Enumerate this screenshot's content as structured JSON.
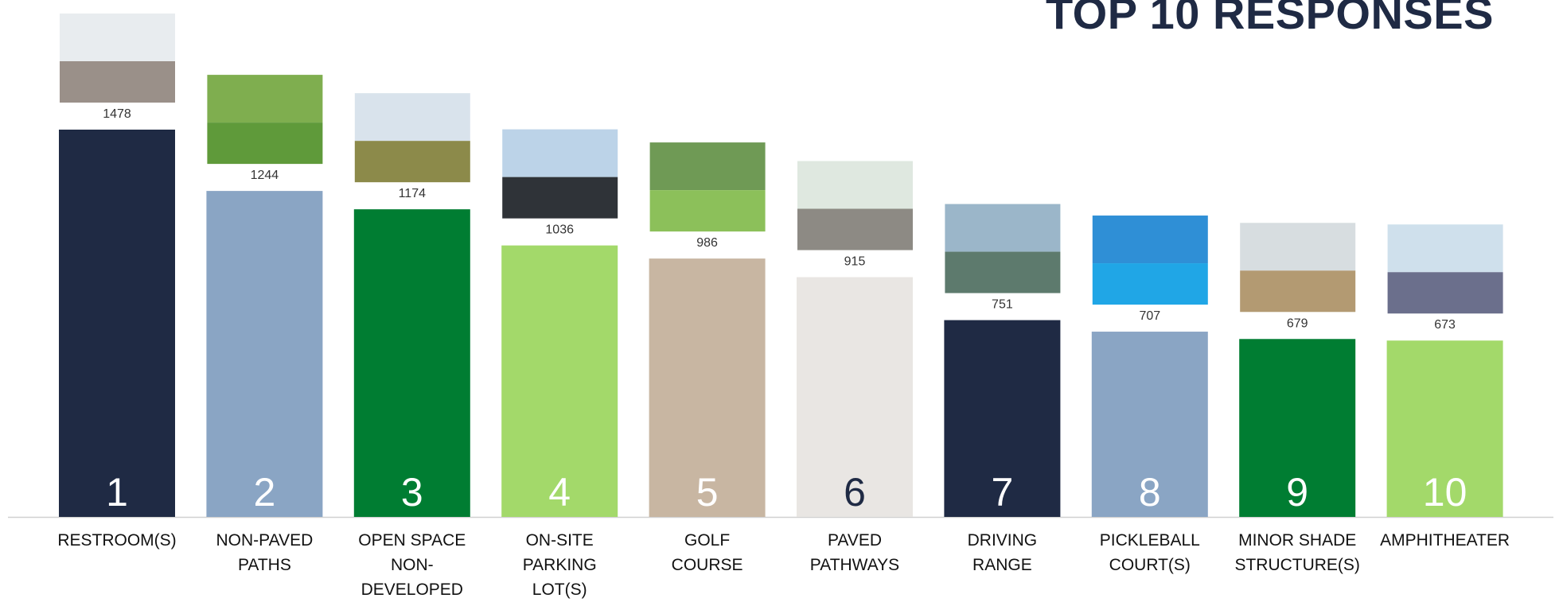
{
  "chart_data": {
    "type": "bar",
    "title": "TOP 10 RESPONSES",
    "categories": [
      "RESTROOM(S)",
      "NON-PAVED PATHS",
      "OPEN SPACE NON-DEVELOPED",
      "ON-SITE PARKING LOT(S)",
      "GOLF COURSE",
      "PAVED PATHWAYS",
      "DRIVING RANGE",
      "PICKLEBALL COURT(S)",
      "MINOR SHADE STRUCTURE(S)",
      "AMPHITHEATER"
    ],
    "values": [
      1478,
      1244,
      1174,
      1036,
      986,
      915,
      751,
      707,
      679,
      673
    ],
    "ranks": [
      "1",
      "2",
      "3",
      "4",
      "5",
      "6",
      "7",
      "8",
      "9",
      "10"
    ],
    "colors": [
      "#1f2a44",
      "#8aa5c4",
      "#007d32",
      "#a3d96a",
      "#c8b6a2",
      "#e9e6e3",
      "#1f2a44",
      "#8aa5c4",
      "#007d32",
      "#a3d96a"
    ]
  }
}
